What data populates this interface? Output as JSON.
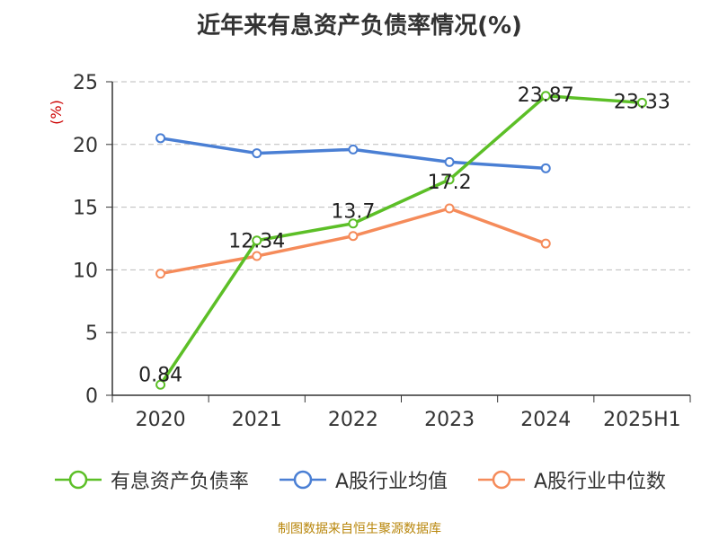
{
  "chart_data": {
    "type": "line",
    "title": "近年来有息资产负债率情况(%)",
    "ylabel": "(%)",
    "xlabel": "",
    "categories": [
      "2020",
      "2021",
      "2022",
      "2023",
      "2024",
      "2025H1"
    ],
    "ylim": [
      0,
      25
    ],
    "yticks": [
      0,
      5,
      10,
      15,
      20,
      25
    ],
    "grid": "horizontal dashed",
    "legend_position": "bottom",
    "series": [
      {
        "name": "有息资产负债率",
        "color": "#5cbf27",
        "values": [
          0.84,
          12.34,
          13.7,
          17.2,
          23.87,
          23.33
        ],
        "labels": [
          "0.84",
          "12.34",
          "13.7",
          "17.2",
          "23.87",
          "23.33"
        ]
      },
      {
        "name": "A股行业均值",
        "color": "#4a7fd4",
        "values": [
          20.5,
          19.3,
          19.6,
          18.6,
          18.1,
          null
        ],
        "labels": []
      },
      {
        "name": "A股行业中位数",
        "color": "#f58b5a",
        "values": [
          9.7,
          11.1,
          12.7,
          14.9,
          12.1,
          null
        ],
        "labels": []
      }
    ]
  },
  "source": "制图数据来自恒生聚源数据库"
}
